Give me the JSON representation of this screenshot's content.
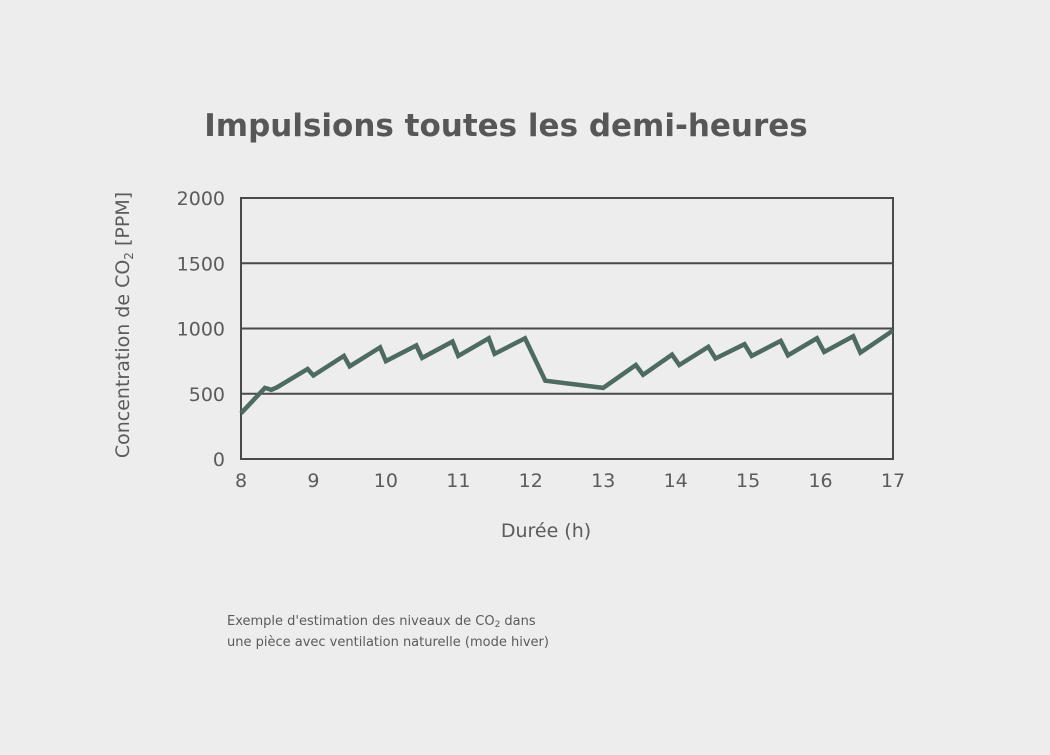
{
  "chart_data": {
    "type": "line",
    "title": "Impulsions toutes les demi-heures",
    "xlabel": "Durée (h)",
    "ylabel": {
      "before": "Concentration de CO",
      "sub": "2",
      "after": " [PPM]"
    },
    "xlim": [
      8,
      17
    ],
    "ylim": [
      0,
      2000
    ],
    "xticks": [
      "8",
      "9",
      "10",
      "11",
      "12",
      "13",
      "14",
      "15",
      "16",
      "17"
    ],
    "yticks": [
      "0",
      "500",
      "1000",
      "1500",
      "2000"
    ],
    "grid": "horizontal",
    "series": [
      {
        "color": "#4e6b60",
        "x": [
          8.0,
          8.33,
          8.42,
          8.5,
          8.92,
          9.0,
          9.42,
          9.5,
          9.92,
          10.0,
          10.42,
          10.5,
          10.92,
          11.0,
          11.42,
          11.5,
          11.92,
          12.2,
          13.0,
          13.45,
          13.55,
          13.95,
          14.05,
          14.45,
          14.55,
          14.95,
          15.05,
          15.45,
          15.55,
          15.95,
          16.05,
          16.45,
          16.55,
          17.0
        ],
        "y": [
          350,
          545,
          530,
          550,
          690,
          640,
          790,
          710,
          855,
          750,
          870,
          775,
          900,
          790,
          925,
          805,
          925,
          600,
          545,
          720,
          645,
          800,
          720,
          860,
          770,
          880,
          790,
          905,
          795,
          925,
          820,
          940,
          815,
          985
        ]
      }
    ]
  },
  "caption": {
    "line1_before": "Exemple d'estimation des niveaux de CO",
    "line1_sub": "2",
    "line1_after": " dans",
    "line2": "une pièce avec ventilation naturelle (mode hiver)"
  },
  "colors": {
    "background": "#ededed",
    "line": "#4e6b60",
    "frame": "#4a4a4a",
    "text": "#5b5b5b"
  }
}
